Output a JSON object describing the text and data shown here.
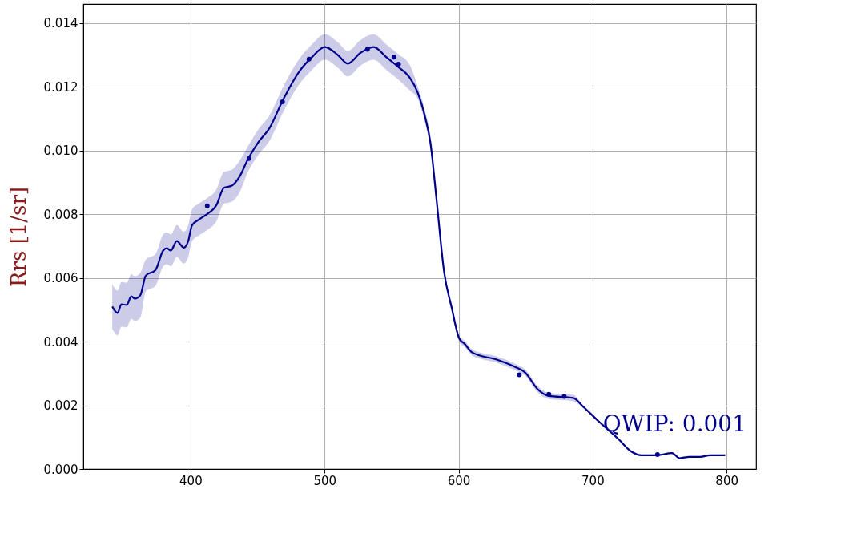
{
  "chart_data": {
    "type": "line",
    "ylabel": "Rrs [1/sr]",
    "annotations": [
      "QWIP: 0.001"
    ],
    "xlim": [
      320,
      822
    ],
    "ylim": [
      0,
      0.0146
    ],
    "xticks": [
      400,
      500,
      600,
      700,
      800
    ],
    "yticks": [
      {
        "value": 0,
        "label": "0.000"
      },
      {
        "value": 0.002,
        "label": "0.002"
      },
      {
        "value": 0.004,
        "label": "0.004"
      },
      {
        "value": 0.006,
        "label": "0.006"
      },
      {
        "value": 0.008,
        "label": "0.008"
      },
      {
        "value": 0.01,
        "label": "0.010"
      },
      {
        "value": 0.012,
        "label": "0.012"
      },
      {
        "value": 0.014,
        "label": "0.014"
      }
    ],
    "grid": true,
    "series": [
      {
        "type": "line",
        "color": "#00008b",
        "line_style": "solid",
        "x": [
          341.6,
          345.6,
          348.4,
          352.4,
          355.8,
          358.6,
          362.6,
          366.6,
          373.9,
          379.6,
          382.4,
          385.3,
          389.8,
          394.9,
          398.3,
          401.1,
          406.2,
          411.9,
          419.3,
          424.9,
          430.6,
          436.3,
          443.1,
          450.4,
          458.9,
          469.1,
          481.6,
          490.1,
          500.3,
          509.9,
          517.3,
          526.9,
          536.5,
          546.7,
          555.2,
          563.7,
          569.4,
          575.1,
          579.0,
          583.6,
          589.2,
          594.9,
          600.6,
          604.5,
          610.2,
          628.9,
          641.9,
          649.9,
          658.9,
          666.9,
          685.6,
          692.9,
          704.2,
          719.5,
          729.2,
          736.5,
          747.9,
          759.2,
          764.9,
          772.2,
          780.2,
          787.5,
          798.9
        ],
        "values": [
          0.0051,
          0.0049,
          0.00517,
          0.00515,
          0.00542,
          0.00535,
          0.00546,
          0.00607,
          0.00625,
          0.00686,
          0.00693,
          0.00686,
          0.00716,
          0.00695,
          0.00716,
          0.00765,
          0.00783,
          0.00799,
          0.00828,
          0.00883,
          0.00889,
          0.00916,
          0.00975,
          0.01025,
          0.0107,
          0.0116,
          0.01251,
          0.01291,
          0.01325,
          0.013,
          0.01273,
          0.01307,
          0.01325,
          0.01291,
          0.01262,
          0.01228,
          0.01183,
          0.01104,
          0.01025,
          0.00844,
          0.00619,
          0.00506,
          0.00409,
          0.00393,
          0.00366,
          0.00343,
          0.00321,
          0.00302,
          0.00251,
          0.0023,
          0.00223,
          0.00196,
          0.00151,
          0.00093,
          0.00054,
          0.00043,
          0.00043,
          0.0005,
          0.00034,
          0.00038,
          0.00038,
          0.00043,
          0.00043
        ],
        "lower": [
          0.0044,
          0.0042,
          0.00447,
          0.00445,
          0.00472,
          0.00465,
          0.00476,
          0.00557,
          0.00575,
          0.00636,
          0.00643,
          0.00636,
          0.00666,
          0.00645,
          0.00666,
          0.00715,
          0.00733,
          0.00749,
          0.00778,
          0.00833,
          0.00839,
          0.00866,
          0.00935,
          0.00985,
          0.0103,
          0.0112,
          0.01211,
          0.01251,
          0.01285,
          0.0126,
          0.01233,
          0.01267,
          0.01285,
          0.01251,
          0.01222,
          0.01188,
          0.01163,
          0.01084,
          0.01005,
          0.00834,
          0.00609,
          0.00496,
          0.00399,
          0.00383,
          0.00356,
          0.00333,
          0.00311,
          0.00292,
          0.00241,
          0.0022,
          0.00213,
          0.00193,
          0.00148,
          0.0009,
          0.00051,
          0.0004,
          0.0004,
          0.00047,
          0.00031,
          0.00035,
          0.00035,
          0.0004,
          0.0004
        ],
        "upper": [
          0.0058,
          0.0056,
          0.00587,
          0.00585,
          0.00612,
          0.00605,
          0.00616,
          0.00657,
          0.00675,
          0.00736,
          0.00743,
          0.00736,
          0.00766,
          0.00745,
          0.00766,
          0.00815,
          0.00833,
          0.00849,
          0.00878,
          0.00933,
          0.00939,
          0.00966,
          0.01015,
          0.01065,
          0.0111,
          0.012,
          0.01291,
          0.01331,
          0.01365,
          0.0134,
          0.01313,
          0.01347,
          0.01365,
          0.01331,
          0.01302,
          0.01268,
          0.01203,
          0.01124,
          0.01045,
          0.00854,
          0.00629,
          0.00516,
          0.00419,
          0.00403,
          0.00376,
          0.00353,
          0.00331,
          0.00312,
          0.00261,
          0.0024,
          0.00233,
          0.00199,
          0.00154,
          0.00096,
          0.00057,
          0.00046,
          0.00046,
          0.00053,
          0.00037,
          0.00041,
          0.00041,
          0.00046,
          0.00046
        ]
      },
      {
        "type": "scatter",
        "color": "#00008b",
        "marker": "circle",
        "x": [
          412.5,
          443.6,
          468.6,
          488.4,
          532.0,
          551.8,
          555.2,
          645.3,
          667.4,
          678.8,
          748.4
        ],
        "values": [
          0.00826,
          0.00975,
          0.01153,
          0.01287,
          0.01318,
          0.01293,
          0.01271,
          0.00296,
          0.00235,
          0.00228,
          0.00045
        ]
      }
    ]
  }
}
